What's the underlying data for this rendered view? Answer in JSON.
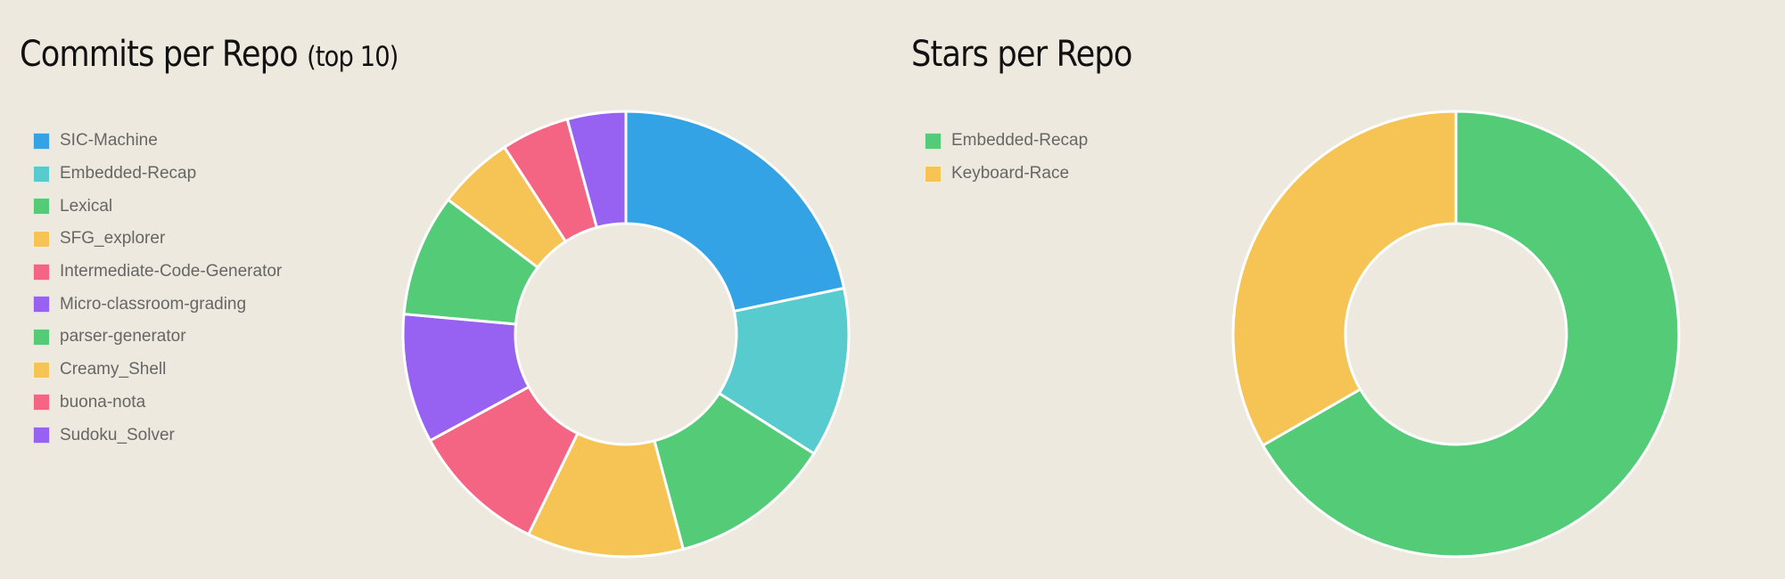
{
  "chart_data": [
    {
      "type": "pie",
      "title": "Commits per Repo",
      "subtitle": "(top 10)",
      "legend_position": "left",
      "categories": [
        "SIC-Machine",
        "Embedded-Recap",
        "Lexical",
        "SFG_explorer",
        "Intermediate-Code-Generator",
        "Micro-classroom-grading",
        "parser-generator",
        "Creamy_Shell",
        "buona-nota",
        "Sudoku_Solver"
      ],
      "values": [
        22,
        12.5,
        12,
        11.5,
        10,
        9.5,
        9,
        5.6,
        5,
        4.3
      ],
      "colors": [
        "#33a3e5",
        "#57cbcd",
        "#53cb77",
        "#f5c454",
        "#f36582",
        "#9762f1",
        "#53cb77",
        "#f5c454",
        "#f36582",
        "#9762f1"
      ]
    },
    {
      "type": "pie",
      "title": "Stars per Repo",
      "legend_position": "left",
      "categories": [
        "Embedded-Recap",
        "Keyboard-Race"
      ],
      "values": [
        2,
        1
      ],
      "colors": [
        "#53cb77",
        "#f5c454"
      ]
    }
  ]
}
